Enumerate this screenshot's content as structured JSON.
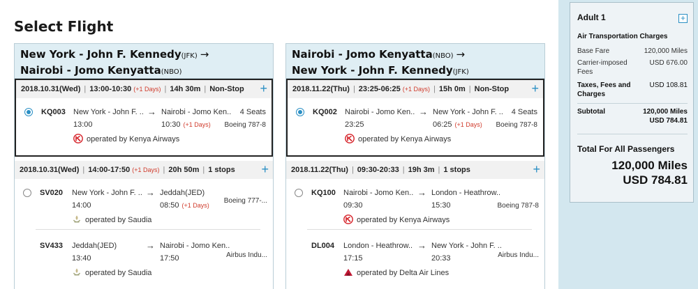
{
  "page_title": "Select Flight",
  "colors": {
    "accent": "#2a8fc4",
    "plus_days": "#d03b2c",
    "header_bg": "#dfeef4",
    "kenya_red": "#d51f26",
    "delta_red": "#c01933"
  },
  "outbound": {
    "route_line1": "New York - John F. Kennedy",
    "route_line1_code": "(JFK)",
    "route_line2": "Nairobi - Jomo Kenyatta",
    "route_line2_code": "(NBO)",
    "arrow": "→",
    "options": [
      {
        "date": "2018.10.31(Wed)",
        "times": "13:00-10:30",
        "plus_days": "(+1 Days)",
        "duration": "14h 30m",
        "stops": "Non-Stop",
        "segments": [
          {
            "flight": "KQ003",
            "dep": "New York - John F. ...",
            "dep_time": "13:00",
            "arr": "Nairobi - Jomo Ken...",
            "arr_time": "10:30",
            "arr_plus": "(+1 Days)",
            "seats": "4 Seats",
            "aircraft": "Boeing 787-8",
            "operator": "operated by Kenya Airways",
            "logo": "kenya-airways-logo"
          }
        ]
      },
      {
        "date": "2018.10.31(Wed)",
        "times": "14:00-17:50",
        "plus_days": "(+1 Days)",
        "duration": "20h 50m",
        "stops": "1 stops",
        "segments": [
          {
            "flight": "SV020",
            "dep": "New York - John F. ...",
            "dep_time": "14:00",
            "arr": "Jeddah(JED)",
            "arr_time": "08:50",
            "arr_plus": "(+1 Days)",
            "seats": "",
            "aircraft": "Boeing 777-...",
            "operator": "operated by Saudia",
            "logo": "saudia-logo"
          },
          {
            "flight": "SV433",
            "dep": "Jeddah(JED)",
            "dep_time": "13:40",
            "arr": "Nairobi - Jomo Ken...",
            "arr_time": "17:50",
            "arr_plus": "",
            "seats": "",
            "aircraft": "Airbus Indu...",
            "operator": "operated by Saudia",
            "logo": "saudia-logo"
          }
        ]
      }
    ]
  },
  "return": {
    "route_line1": "Nairobi - Jomo Kenyatta",
    "route_line1_code": "(NBO)",
    "route_line2": "New York - John F. Kennedy",
    "route_line2_code": "(JFK)",
    "arrow": "→",
    "options": [
      {
        "date": "2018.11.22(Thu)",
        "times": "23:25-06:25",
        "plus_days": "(+1 Days)",
        "duration": "15h 0m",
        "stops": "Non-Stop",
        "segments": [
          {
            "flight": "KQ002",
            "dep": "Nairobi - Jomo Ken...",
            "dep_time": "23:25",
            "arr": "New York - John F. ...",
            "arr_time": "06:25",
            "arr_plus": "(+1 Days)",
            "seats": "4 Seats",
            "aircraft": "Boeing 787-8",
            "operator": "operated by Kenya Airways",
            "logo": "kenya-airways-logo"
          }
        ]
      },
      {
        "date": "2018.11.22(Thu)",
        "times": "09:30-20:33",
        "plus_days": "",
        "duration": "19h 3m",
        "stops": "1 stops",
        "segments": [
          {
            "flight": "KQ100",
            "dep": "Nairobi - Jomo Ken...",
            "dep_time": "09:30",
            "arr": "London - Heathrow...",
            "arr_time": "15:30",
            "arr_plus": "",
            "seats": "",
            "aircraft": "Boeing 787-8",
            "operator": "operated by Kenya Airways",
            "logo": "kenya-airways-logo"
          },
          {
            "flight": "DL004",
            "dep": "London - Heathrow...",
            "dep_time": "17:15",
            "arr": "New York - John F. ...",
            "arr_time": "20:33",
            "arr_plus": "",
            "seats": "",
            "aircraft": "Airbus Indu...",
            "operator": "operated by Delta Air Lines",
            "logo": "delta-logo"
          }
        ]
      }
    ]
  },
  "summary": {
    "passenger": "Adult 1",
    "expand_icon": "+",
    "section_title": "Air Transportation Charges",
    "base_fare_label": "Base Fare",
    "base_fare_value": "120,000 Miles",
    "carrier_fees_label": "Carrier-imposed Fees",
    "carrier_fees_value": "USD 676.00",
    "taxes_label": "Taxes, Fees and Charges",
    "taxes_value": "USD 108.81",
    "subtotal_label": "Subtotal",
    "subtotal_miles": "120,000 Miles",
    "subtotal_usd": "USD 784.81",
    "total_label": "Total For All Passengers",
    "total_miles": "120,000 Miles",
    "total_usd": "USD 784.81"
  }
}
